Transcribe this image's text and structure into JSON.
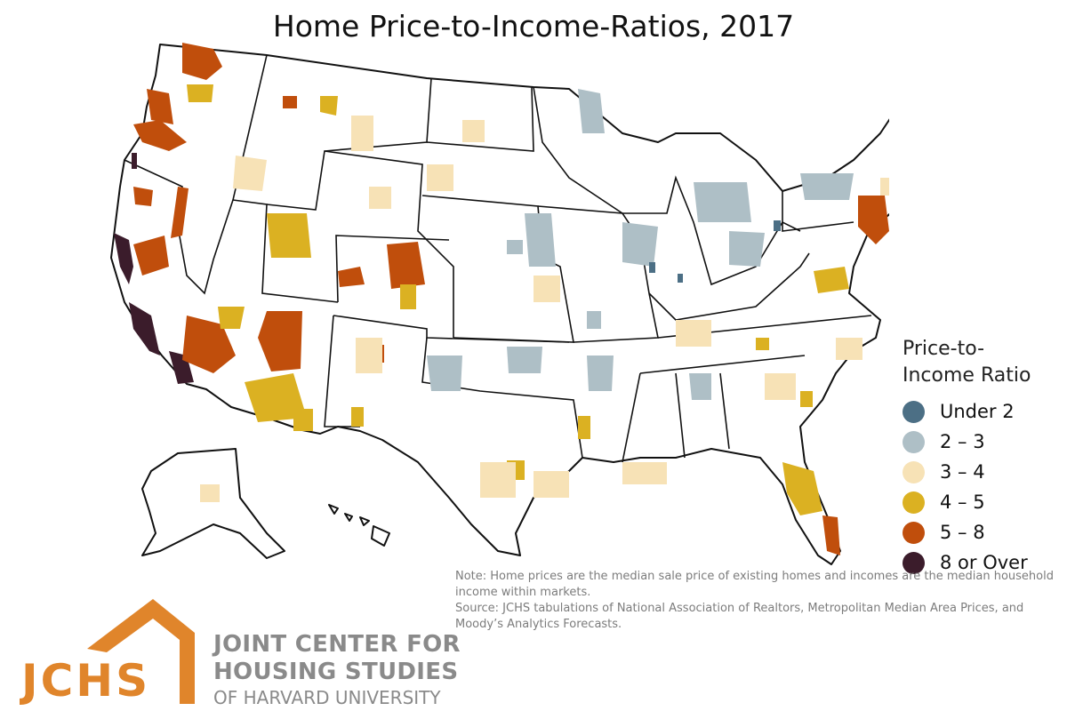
{
  "title": "Home Price-to-Income-Ratios, 2017",
  "legend": {
    "title_line1": "Price-to-",
    "title_line2": "Income Ratio",
    "items": [
      {
        "label": "Under 2",
        "color": "#4c6f85"
      },
      {
        "label": "2 – 3",
        "color": "#aebfc6"
      },
      {
        "label": "3 – 4",
        "color": "#f7e2b6"
      },
      {
        "label": "4 – 5",
        "color": "#dbb122"
      },
      {
        "label": "5 – 8",
        "color": "#c04e0c"
      },
      {
        "label": "8 or Over",
        "color": "#3b1c2b"
      }
    ]
  },
  "notes": {
    "line1": "Note: Home prices are the median sale price of existing homes and incomes are the median household income within markets.",
    "line2": "Source: JCHS tabulations of National Association of Realtors, Metropolitan Median Area Prices, and Moody’s Analytics Forecasts."
  },
  "logo": {
    "mark": "JCHS",
    "line1": "JOINT CENTER FOR",
    "line2": "HOUSING STUDIES",
    "line3": "OF HARVARD UNIVERSITY",
    "color": "#e0852b"
  },
  "colors": {
    "map_fill": "#ffffff",
    "state_border": "#111111"
  }
}
